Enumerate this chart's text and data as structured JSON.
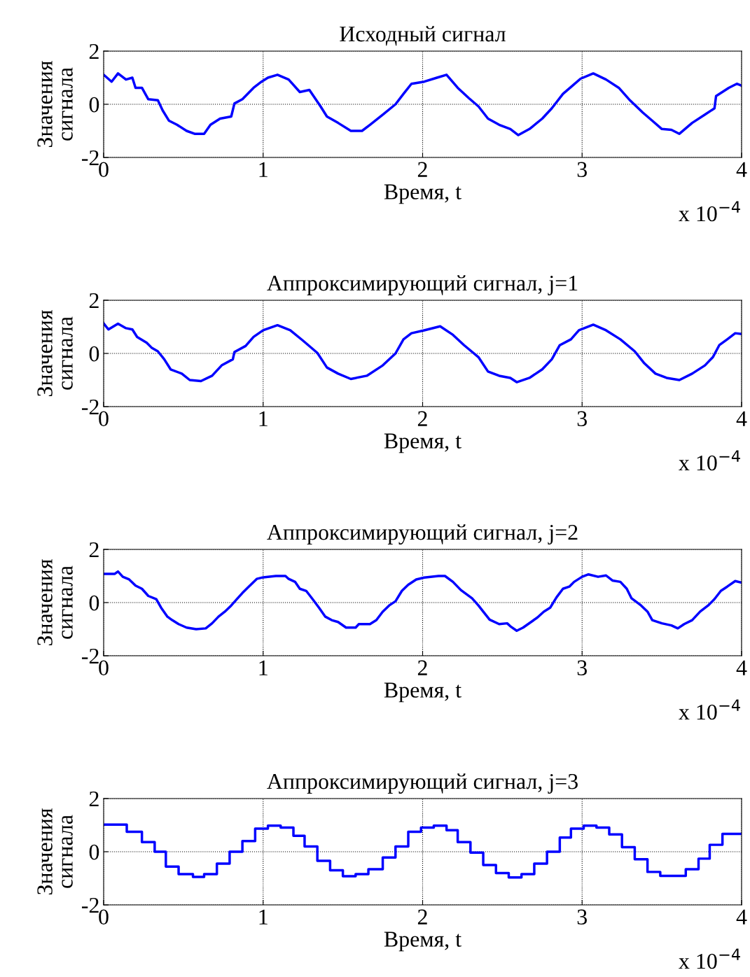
{
  "chart_data": [
    {
      "type": "line",
      "title": "Исходный сигнал",
      "xlabel": "Время, t",
      "ylabel": "Значения\nсигнала",
      "annotations": [
        "x 10$^{−4}$"
      ],
      "xlim": [
        0,
        4
      ],
      "xticks": [
        0,
        1,
        2,
        3,
        4
      ],
      "ylim": [
        -2,
        2
      ],
      "yticks": [
        -2,
        0,
        2
      ],
      "grid": true,
      "line_style": "solid",
      "series": [
        {
          "color": "#0000ff",
          "x": [
            0,
            0.05,
            0.09,
            0.14,
            0.18,
            0.2,
            0.24,
            0.28,
            0.34,
            0.37,
            0.41,
            0.46,
            0.52,
            0.57,
            0.63,
            0.67,
            0.73,
            0.8,
            0.82,
            0.87,
            0.94,
            0.99,
            1.03,
            1.09,
            1.16,
            1.23,
            1.29,
            1.36,
            1.4,
            1.47,
            1.55,
            1.62,
            1.67,
            1.75,
            1.83,
            1.88,
            1.93,
            2.01,
            2.09,
            2.15,
            2.22,
            2.29,
            2.35,
            2.41,
            2.48,
            2.55,
            2.6,
            2.67,
            2.75,
            2.81,
            2.88,
            2.94,
            2.99,
            3.07,
            3.15,
            3.23,
            3.3,
            3.38,
            3.44,
            3.5,
            3.56,
            3.61,
            3.69,
            3.77,
            3.83,
            3.84,
            3.92,
            3.97,
            4.0
          ],
          "values": [
            1.11,
            0.85,
            1.16,
            0.93,
            1.0,
            0.62,
            0.62,
            0.19,
            0.15,
            -0.23,
            -0.62,
            -0.77,
            -1.0,
            -1.11,
            -1.11,
            -0.77,
            -0.54,
            -0.46,
            0.03,
            0.19,
            0.62,
            0.85,
            1.0,
            1.11,
            0.93,
            0.46,
            0.54,
            -0.08,
            -0.46,
            -0.7,
            -1.0,
            -1.0,
            -0.77,
            -0.39,
            0.0,
            0.39,
            0.77,
            0.85,
            1.0,
            1.11,
            0.62,
            0.23,
            -0.08,
            -0.54,
            -0.77,
            -0.93,
            -1.16,
            -0.93,
            -0.54,
            -0.15,
            0.39,
            0.7,
            0.96,
            1.16,
            0.93,
            0.62,
            0.15,
            -0.31,
            -0.62,
            -0.93,
            -0.96,
            -1.11,
            -0.7,
            -0.39,
            -0.15,
            0.31,
            0.62,
            0.77,
            0.7
          ]
        }
      ]
    },
    {
      "type": "line",
      "title": "Аппроксимирующий сигнал, j=1",
      "xlabel": "Время, t",
      "ylabel": "Значения\nсигнала",
      "annotations": [
        "x 10$^{−4}$"
      ],
      "xlim": [
        0,
        4
      ],
      "xticks": [
        0,
        1,
        2,
        3,
        4
      ],
      "ylim": [
        -2,
        2
      ],
      "yticks": [
        -2,
        0,
        2
      ],
      "grid": true,
      "line_style": "solid",
      "series": [
        {
          "color": "#0000ff",
          "x": [
            0,
            0.03,
            0.09,
            0.14,
            0.18,
            0.21,
            0.27,
            0.3,
            0.34,
            0.38,
            0.42,
            0.49,
            0.54,
            0.61,
            0.68,
            0.74,
            0.81,
            0.82,
            0.89,
            0.94,
            1.0,
            1.09,
            1.17,
            1.25,
            1.34,
            1.4,
            1.47,
            1.55,
            1.65,
            1.75,
            1.83,
            1.88,
            1.93,
            2.01,
            2.11,
            2.19,
            2.26,
            2.35,
            2.41,
            2.48,
            2.55,
            2.59,
            2.67,
            2.75,
            2.81,
            2.86,
            2.93,
            2.98,
            3.07,
            3.15,
            3.24,
            3.33,
            3.39,
            3.46,
            3.53,
            3.61,
            3.69,
            3.77,
            3.82,
            3.86,
            3.91,
            3.96,
            4.0
          ],
          "values": [
            1.13,
            0.9,
            1.12,
            0.95,
            0.9,
            0.62,
            0.4,
            0.22,
            0.08,
            -0.22,
            -0.6,
            -0.76,
            -1.0,
            -1.04,
            -0.84,
            -0.45,
            -0.22,
            0.05,
            0.28,
            0.62,
            0.87,
            1.06,
            0.87,
            0.48,
            0.02,
            -0.53,
            -0.76,
            -0.96,
            -0.84,
            -0.45,
            0.0,
            0.53,
            0.76,
            0.87,
            1.02,
            0.7,
            0.31,
            -0.14,
            -0.68,
            -0.84,
            -0.92,
            -1.08,
            -0.92,
            -0.6,
            -0.22,
            0.31,
            0.53,
            0.87,
            1.08,
            0.87,
            0.53,
            0.08,
            -0.37,
            -0.76,
            -0.92,
            -1.0,
            -0.76,
            -0.45,
            -0.14,
            0.31,
            0.53,
            0.76,
            0.73
          ]
        }
      ]
    },
    {
      "type": "line",
      "title": "Аппроксимирующий сигнал, j=2",
      "xlabel": "Время, t",
      "ylabel": "Значения\nсигнала",
      "annotations": [
        "x 10$^{−4}$"
      ],
      "xlim": [
        0,
        4
      ],
      "xticks": [
        0,
        1,
        2,
        3,
        4
      ],
      "ylim": [
        -2,
        2
      ],
      "yticks": [
        -2,
        0,
        2
      ],
      "grid": true,
      "line_style": "solid",
      "series": [
        {
          "color": "#0000ff",
          "x": [
            0,
            0.07,
            0.09,
            0.12,
            0.16,
            0.2,
            0.24,
            0.28,
            0.33,
            0.36,
            0.4,
            0.43,
            0.47,
            0.52,
            0.58,
            0.64,
            0.68,
            0.72,
            0.76,
            0.8,
            0.84,
            0.87,
            0.91,
            0.96,
            1.0,
            1.08,
            1.14,
            1.16,
            1.2,
            1.23,
            1.27,
            1.31,
            1.35,
            1.39,
            1.43,
            1.47,
            1.52,
            1.58,
            1.6,
            1.67,
            1.71,
            1.75,
            1.79,
            1.83,
            1.87,
            1.91,
            1.96,
            2.01,
            2.1,
            2.14,
            2.19,
            2.24,
            2.31,
            2.35,
            2.38,
            2.42,
            2.48,
            2.53,
            2.55,
            2.59,
            2.63,
            2.68,
            2.72,
            2.76,
            2.8,
            2.84,
            2.88,
            2.92,
            2.95,
            3.0,
            3.04,
            3.1,
            3.15,
            3.19,
            3.24,
            3.28,
            3.31,
            3.37,
            3.41,
            3.44,
            3.5,
            3.56,
            3.6,
            3.64,
            3.69,
            3.74,
            3.79,
            3.83,
            3.87,
            3.91,
            3.96,
            4.0
          ],
          "values": [
            1.08,
            1.08,
            1.17,
            0.97,
            0.87,
            0.64,
            0.52,
            0.25,
            0.13,
            -0.19,
            -0.53,
            -0.66,
            -0.81,
            -0.94,
            -1.0,
            -0.97,
            -0.78,
            -0.53,
            -0.34,
            -0.11,
            0.16,
            0.36,
            0.6,
            0.89,
            0.95,
            1.0,
            1.0,
            0.89,
            0.78,
            0.52,
            0.44,
            0.13,
            -0.19,
            -0.53,
            -0.66,
            -0.73,
            -0.94,
            -0.94,
            -0.81,
            -0.81,
            -0.66,
            -0.34,
            -0.11,
            0.05,
            0.44,
            0.67,
            0.87,
            0.94,
            1.0,
            1.0,
            0.78,
            0.47,
            0.16,
            -0.11,
            -0.34,
            -0.64,
            -0.81,
            -0.78,
            -0.89,
            -1.06,
            -0.94,
            -0.73,
            -0.56,
            -0.34,
            -0.19,
            0.2,
            0.52,
            0.6,
            0.78,
            0.97,
            1.06,
            0.97,
            1.02,
            0.83,
            0.78,
            0.52,
            0.16,
            -0.11,
            -0.34,
            -0.66,
            -0.78,
            -0.86,
            -0.97,
            -0.81,
            -0.66,
            -0.34,
            -0.11,
            0.13,
            0.44,
            0.6,
            0.81,
            0.75
          ]
        }
      ]
    },
    {
      "type": "step",
      "title": "Аппроксимирующий сигнал, j=3",
      "xlabel": "Время, t",
      "ylabel": "Значения\nсигнала",
      "annotations": [
        "x 10$^{−4}$"
      ],
      "xlim": [
        0,
        4
      ],
      "xticks": [
        0,
        1,
        2,
        3,
        4
      ],
      "ylim": [
        -2,
        2
      ],
      "yticks": [
        -2,
        0,
        2
      ],
      "grid": true,
      "line_style": "solid",
      "series": [
        {
          "color": "#0000ff",
          "x": [
            0,
            0.145,
            0.24,
            0.32,
            0.39,
            0.47,
            0.56,
            0.63,
            0.71,
            0.79,
            0.87,
            0.95,
            1.03,
            1.11,
            1.19,
            1.26,
            1.34,
            1.42,
            1.5,
            1.58,
            1.66,
            1.75,
            1.83,
            1.91,
            1.99,
            2.07,
            2.15,
            2.22,
            2.3,
            2.38,
            2.46,
            2.54,
            2.62,
            2.7,
            2.78,
            2.86,
            2.93,
            3.01,
            3.09,
            3.17,
            3.25,
            3.33,
            3.41,
            3.49,
            3.65,
            3.73,
            3.8,
            3.88,
            4.0
          ],
          "values": [
            1.02,
            0.75,
            0.36,
            0.0,
            -0.56,
            -0.84,
            -0.95,
            -0.84,
            -0.45,
            0.0,
            0.4,
            0.87,
            0.98,
            0.91,
            0.6,
            0.2,
            -0.34,
            -0.7,
            -0.92,
            -0.84,
            -0.66,
            -0.22,
            0.2,
            0.75,
            0.91,
            0.98,
            0.81,
            0.36,
            -0.03,
            -0.5,
            -0.8,
            -0.97,
            -0.84,
            -0.45,
            0.0,
            0.53,
            0.87,
            0.98,
            0.91,
            0.65,
            0.17,
            -0.28,
            -0.76,
            -0.91,
            -0.66,
            -0.26,
            0.26,
            0.67,
            0.67
          ]
        }
      ]
    }
  ]
}
